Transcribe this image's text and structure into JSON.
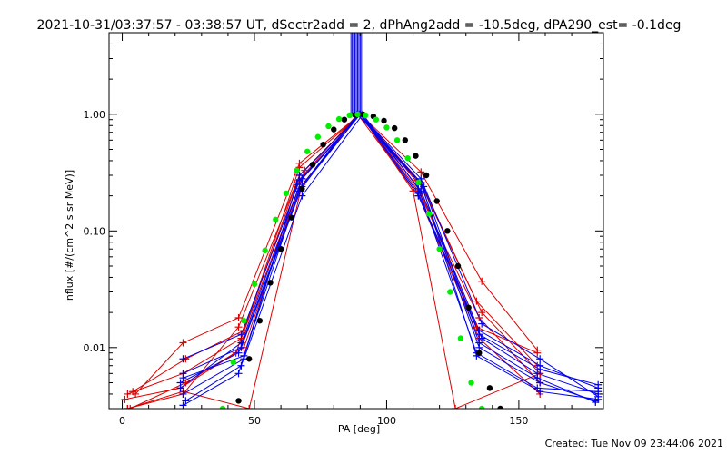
{
  "chart_data": {
    "type": "line",
    "title": "2021-10-31/03:37:57 - 03:38:57 UT, dSectr2add = 2, dPhAng2add = -10.5deg, dPA290_est= -0.1deg",
    "xlabel": "PA [deg]",
    "ylabel": "nflux [#/(cm^2 s sr MeV)]",
    "xlim": [
      -5,
      182
    ],
    "ylim": [
      0.003,
      5.0
    ],
    "yscale": "log",
    "x_ticks": [
      0,
      50,
      100,
      150
    ],
    "x_tick_labels": [
      "0",
      "50",
      "100",
      "150"
    ],
    "y_ticks": [
      0.01,
      0.1,
      1.0
    ],
    "y_tick_labels": [
      "0.01",
      "0.10",
      "1.00"
    ],
    "grid": false,
    "footer": "Created: Tue Nov 09 23:44:06 2021",
    "colors": {
      "red": "#dd0000",
      "blue": "#0000ee",
      "green": "#00ee00",
      "black": "#000000"
    },
    "series": [
      {
        "color": "red",
        "marker": "plus",
        "x": [
          2,
          23,
          44,
          67,
          90,
          113,
          136,
          158
        ],
        "y": [
          0.003,
          0.004,
          0.015,
          0.3,
          1.0,
          0.25,
          0.02,
          0.006
        ]
      },
      {
        "color": "red",
        "marker": "plus",
        "x": [
          2,
          23,
          45,
          68,
          90,
          112,
          135,
          158
        ],
        "y": [
          0.004,
          0.006,
          0.012,
          0.28,
          1.0,
          0.22,
          0.018,
          0.005
        ]
      },
      {
        "color": "red",
        "marker": "plus",
        "x": [
          3,
          24,
          46,
          69,
          90,
          111,
          134,
          157
        ],
        "y": [
          0.003,
          0.005,
          0.01,
          0.33,
          1.0,
          0.27,
          0.015,
          0.009
        ]
      },
      {
        "color": "red",
        "marker": "plus",
        "x": [
          5,
          23,
          44,
          67,
          90,
          113,
          136,
          157
        ],
        "y": [
          0.004,
          0.011,
          0.018,
          0.38,
          1.0,
          0.32,
          0.037,
          0.0095
        ]
      },
      {
        "color": "red",
        "marker": "plus",
        "x": [
          1,
          22,
          43,
          66,
          89,
          112,
          135,
          158
        ],
        "y": [
          0.0036,
          0.0045,
          0.009,
          0.26,
          1.0,
          0.2,
          0.012,
          0.004
        ]
      },
      {
        "color": "red",
        "marker": "plus",
        "x": [
          2,
          23,
          48,
          68,
          90,
          110,
          126,
          158
        ],
        "y": [
          0.003,
          0.0042,
          0.003,
          0.25,
          1.0,
          0.22,
          0.003,
          0.006
        ]
      },
      {
        "color": "red",
        "marker": "plus",
        "x": [
          4,
          24,
          46,
          67,
          90,
          113,
          134,
          157
        ],
        "y": [
          0.0042,
          0.008,
          0.014,
          0.35,
          1.0,
          0.26,
          0.025,
          0.007
        ]
      },
      {
        "color": "blue",
        "marker": "plus",
        "x": [
          23,
          45,
          67,
          90,
          113,
          135,
          158,
          180
        ],
        "y": [
          0.008,
          0.013,
          0.27,
          1.0,
          0.22,
          0.014,
          0.007,
          0.0045
        ]
      },
      {
        "color": "blue",
        "marker": "plus",
        "x": [
          23,
          45,
          68,
          90,
          112,
          136,
          157,
          180
        ],
        "y": [
          0.006,
          0.01,
          0.24,
          1.0,
          0.2,
          0.012,
          0.006,
          0.004
        ]
      },
      {
        "color": "blue",
        "marker": "plus",
        "x": [
          22,
          44,
          67,
          89,
          113,
          135,
          158,
          179
        ],
        "y": [
          0.005,
          0.009,
          0.22,
          1.0,
          0.25,
          0.01,
          0.005,
          0.0035
        ]
      },
      {
        "color": "blue",
        "marker": "plus",
        "x": [
          23,
          46,
          68,
          91,
          112,
          134,
          157,
          180
        ],
        "y": [
          0.004,
          0.008,
          0.2,
          1.0,
          0.23,
          0.009,
          0.0045,
          0.0042
        ]
      },
      {
        "color": "blue",
        "marker": "plus",
        "x": [
          24,
          45,
          67,
          90,
          113,
          136,
          158,
          180
        ],
        "y": [
          0.0035,
          0.007,
          0.3,
          1.0,
          0.28,
          0.016,
          0.008,
          0.0038
        ]
      },
      {
        "color": "blue",
        "marker": "plus",
        "x": [
          23,
          44,
          66,
          90,
          114,
          135,
          157,
          179
        ],
        "y": [
          0.0032,
          0.006,
          0.25,
          1.0,
          0.24,
          0.011,
          0.0055,
          0.0034
        ]
      },
      {
        "color": "blue",
        "marker": "plus",
        "x": [
          22,
          45,
          68,
          90,
          112,
          135,
          158,
          180
        ],
        "y": [
          0.0045,
          0.011,
          0.28,
          1.0,
          0.21,
          0.013,
          0.0065,
          0.0048
        ]
      },
      {
        "color": "blue",
        "marker": "plus",
        "x": [
          23,
          46,
          67,
          89,
          113,
          134,
          158,
          180
        ],
        "y": [
          0.0055,
          0.0085,
          0.23,
          1.0,
          0.26,
          0.0085,
          0.0042,
          0.0036
        ]
      },
      {
        "color": "black",
        "marker": "dot",
        "x": [
          44,
          48,
          52,
          56,
          60,
          64,
          68,
          72,
          76,
          80,
          84,
          88,
          91,
          95,
          99,
          103,
          107,
          111,
          115,
          119,
          123,
          127,
          131,
          135,
          139,
          143
        ],
        "y": [
          0.0035,
          0.008,
          0.017,
          0.036,
          0.07,
          0.13,
          0.23,
          0.37,
          0.55,
          0.74,
          0.9,
          0.99,
          1.0,
          0.96,
          0.88,
          0.76,
          0.6,
          0.44,
          0.3,
          0.18,
          0.1,
          0.05,
          0.022,
          0.009,
          0.0045,
          0.003
        ]
      },
      {
        "color": "green",
        "marker": "dot",
        "x": [
          38,
          42,
          46,
          50,
          54,
          58,
          62,
          66,
          70,
          74,
          78,
          82,
          86,
          89,
          92,
          96,
          100,
          104,
          108,
          112,
          116,
          120,
          124,
          128,
          132,
          136
        ],
        "y": [
          0.003,
          0.0075,
          0.017,
          0.035,
          0.068,
          0.125,
          0.21,
          0.33,
          0.48,
          0.64,
          0.79,
          0.91,
          0.98,
          1.0,
          0.98,
          0.9,
          0.77,
          0.6,
          0.42,
          0.26,
          0.14,
          0.07,
          0.03,
          0.012,
          0.005,
          0.003
        ]
      }
    ],
    "vertical_markers": [
      {
        "color": "blue",
        "x": [
          86.5,
          87.0,
          87.5,
          88.0,
          88.5,
          89.0,
          89.5,
          90.0,
          90.5
        ]
      }
    ]
  }
}
